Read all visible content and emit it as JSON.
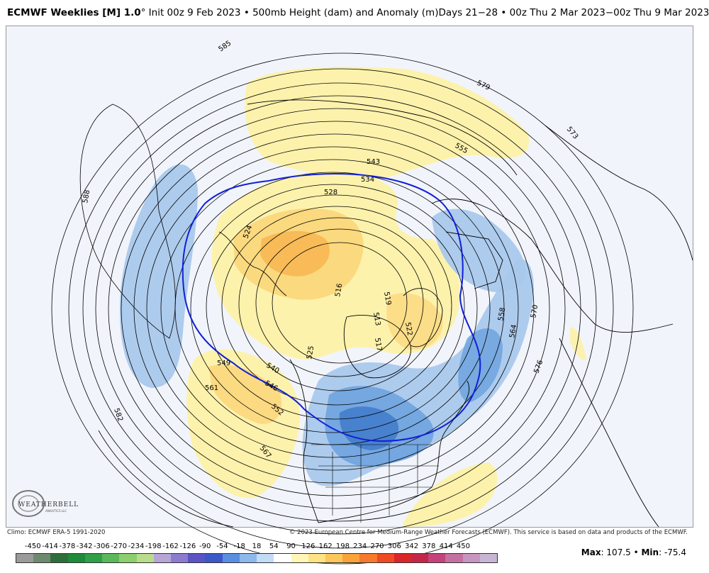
{
  "header": {
    "model": "ECMWF Weeklies [M] 1.0",
    "degree": "°",
    "init": " Init 00z 9 Feb 2023 • 500mb Height (dam) and Anomaly (m)Days 21−28 • 00z Thu 2 Mar 2023−00z Thu 9 Mar 2023"
  },
  "map": {
    "contour_labels": {
      "l588": "588",
      "l582": "582",
      "l585": "585",
      "l579": "579",
      "l555": "555",
      "l543": "543",
      "l534": "534",
      "l528": "528",
      "l524": "524",
      "l516": "516",
      "l519": "519",
      "l522": "522",
      "l513": "513",
      "l517": "517",
      "l525": "525",
      "l540": "540",
      "l549": "549",
      "l546": "546",
      "l561": "561",
      "l552": "552",
      "l567": "567",
      "l558": "558",
      "l564": "564",
      "l570": "570",
      "l576": "576",
      "l573": "573"
    },
    "colors": {
      "ocean": "#f1f4fa",
      "anom_pos_light": "#fdf1a8",
      "anom_pos_mid": "#fbd67a",
      "anom_pos_strong": "#f7b04a",
      "anom_neg_light": "#a9c8ec",
      "anom_neg_mid": "#6fa3de",
      "anom_neg_strong": "#3d78c9",
      "contour": "#000000",
      "highlight_contour": "#1020d8"
    }
  },
  "logo": {
    "text": "WEATHERBELL",
    "sub": "ANALYTICS LLC"
  },
  "footer": {
    "climo": "Climo: ECMWF ERA-5 1991-2020",
    "copyright": "© 2023 European Centre for Medium-Range Weather Forecasts (ECMWF). This service is based on data and products of the ECMWF."
  },
  "legend": {
    "labels": [
      "-450",
      "-414",
      "-378",
      "-342",
      "-306",
      "-270",
      "-234",
      "-198",
      "-162",
      "-126",
      "-90",
      "-54",
      "-18",
      "18",
      "54",
      "90",
      "126",
      "162",
      "198",
      "234",
      "270",
      "306",
      "342",
      "378",
      "414",
      "450"
    ],
    "colors": [
      "#9a9a9a",
      "#6e8a6e",
      "#2f6e3a",
      "#1f8a3a",
      "#2fa048",
      "#5ab85a",
      "#8ccf6e",
      "#b9dc8c",
      "#b7a5d6",
      "#8c7ccf",
      "#5a54c4",
      "#3b58c8",
      "#5a8ee0",
      "#8cb8ec",
      "#c2dcf5",
      "#ffffff",
      "#fff6b8",
      "#fde383",
      "#fbc65a",
      "#f9a338",
      "#f6792c",
      "#ee4a24",
      "#d8262a",
      "#c4264a",
      "#c2447a",
      "#c470a0",
      "#c696c0",
      "#c8b4d4"
    ]
  },
  "stats": {
    "max_label": "Max",
    "max_value": ": 107.5 • ",
    "min_label": "Min",
    "min_value": ": -75.4"
  }
}
